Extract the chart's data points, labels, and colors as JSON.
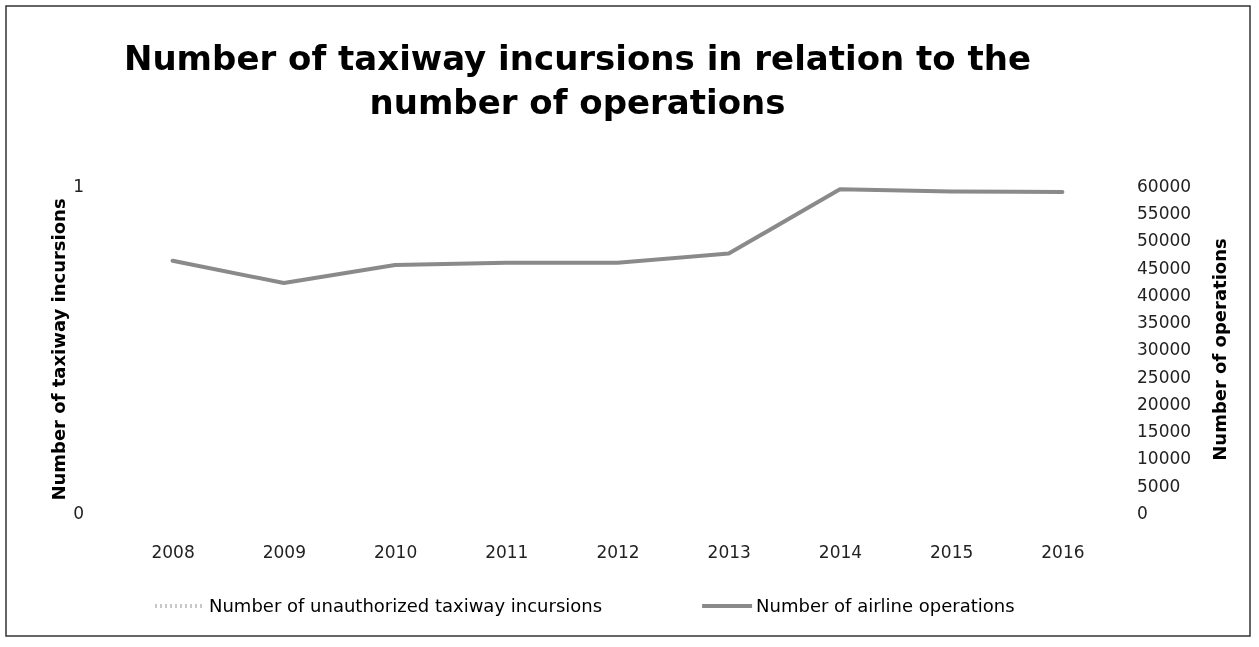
{
  "chart_data": {
    "type": "line",
    "title": "Number of taxiway incursions in relation to the number of operations",
    "ylabel": "Number of taxiway incursions",
    "y2label": "Number of operations",
    "categories": [
      "2008",
      "2009",
      "2010",
      "2011",
      "2012",
      "2013",
      "2014",
      "2015",
      "2016"
    ],
    "series": [
      {
        "name": "Number of unauthorized taxiway incursions",
        "color": "#c8c8c8",
        "values": [
          null,
          null,
          null,
          null,
          null,
          null,
          null,
          null,
          null
        ],
        "line_style": "dotted"
      },
      {
        "name": "Number of airline operations",
        "color": "#8a8a8a",
        "axis": "y2",
        "values": [
          46300,
          42200,
          45500,
          45900,
          45900,
          47600,
          59400,
          59000,
          58900
        ]
      }
    ],
    "ylim": [
      0,
      1
    ],
    "yticks": [
      0,
      1
    ],
    "y2lim": [
      0,
      60000
    ],
    "y2ticks": [
      0,
      5000,
      10000,
      15000,
      20000,
      25000,
      30000,
      35000,
      40000,
      45000,
      50000,
      55000,
      60000
    ],
    "legend": "bottom",
    "grid": false,
    "marker": "none"
  }
}
